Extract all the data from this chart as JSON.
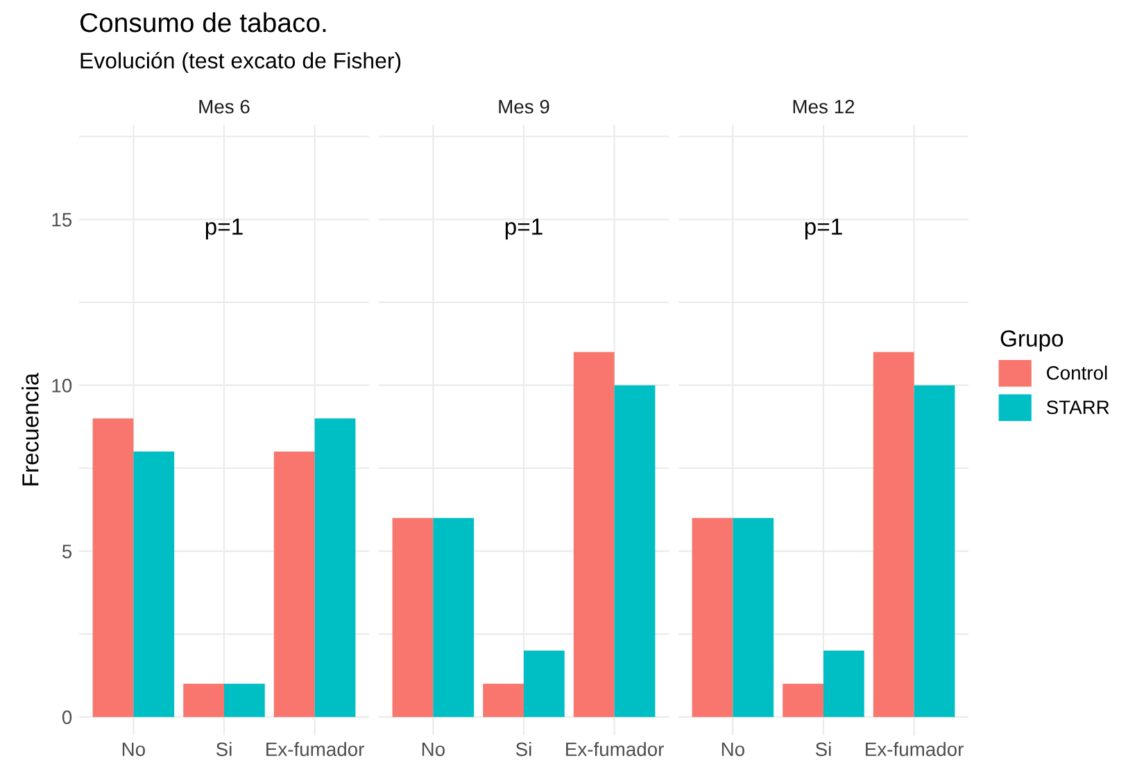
{
  "chart_data": [
    {
      "type": "bar",
      "title": "Mes 6",
      "ylabel": "Frecuencia",
      "legend_title": "Grupo",
      "annotations": [
        "Consumo de tabaco.",
        "Evolución (test excato de Fisher)",
        "p=1"
      ],
      "categories": [
        "No",
        "Si",
        "Ex-fumador"
      ],
      "series": [
        {
          "name": "Control",
          "color": "#f8766d",
          "values": [
            9,
            1,
            8
          ]
        },
        {
          "name": "STARR",
          "color": "#00bfc4",
          "values": [
            8,
            1,
            9
          ]
        }
      ],
      "ylim": [
        -0.55,
        17.85
      ],
      "yticks": [
        0,
        {
          "value": 2.5,
          "label": null
        },
        5,
        {
          "value": 7.5,
          "label": null
        },
        10,
        {
          "value": 12.5,
          "label": null
        },
        15,
        {
          "value": 17.5,
          "label": null
        }
      ],
      "grid": true,
      "legend": "right"
    },
    {
      "type": "bar",
      "title": "Mes 9",
      "annotations": [
        "p=1"
      ],
      "categories": [
        "No",
        "Si",
        "Ex-fumador"
      ],
      "series": [
        {
          "color": "#f8766d",
          "values": [
            6,
            1,
            11
          ]
        },
        {
          "color": "#00bfc4",
          "values": [
            6,
            2,
            10
          ]
        }
      ],
      "ylim": [
        -0.55,
        17.85
      ],
      "yticks": [
        0,
        {
          "value": 2.5,
          "label": null
        },
        5,
        {
          "value": 7.5,
          "label": null
        },
        10,
        {
          "value": 12.5,
          "label": null
        },
        15,
        {
          "value": 17.5,
          "label": null
        }
      ],
      "grid": true,
      "legend": false,
      "tick_labels": "x"
    },
    {
      "type": "bar",
      "title": "Mes 12",
      "annotations": [
        "p=1"
      ],
      "categories": [
        "No",
        "Si",
        "Ex-fumador"
      ],
      "series": [
        {
          "color": "#f8766d",
          "values": [
            6,
            1,
            11
          ]
        },
        {
          "color": "#00bfc4",
          "values": [
            6,
            2,
            10
          ]
        }
      ],
      "ylim": [
        -0.55,
        17.85
      ],
      "yticks": [
        0,
        {
          "value": 2.5,
          "label": null
        },
        5,
        {
          "value": 7.5,
          "label": null
        },
        10,
        {
          "value": 12.5,
          "label": null
        },
        15,
        {
          "value": 17.5,
          "label": null
        }
      ],
      "grid": true,
      "legend": false,
      "tick_labels": "x"
    }
  ]
}
